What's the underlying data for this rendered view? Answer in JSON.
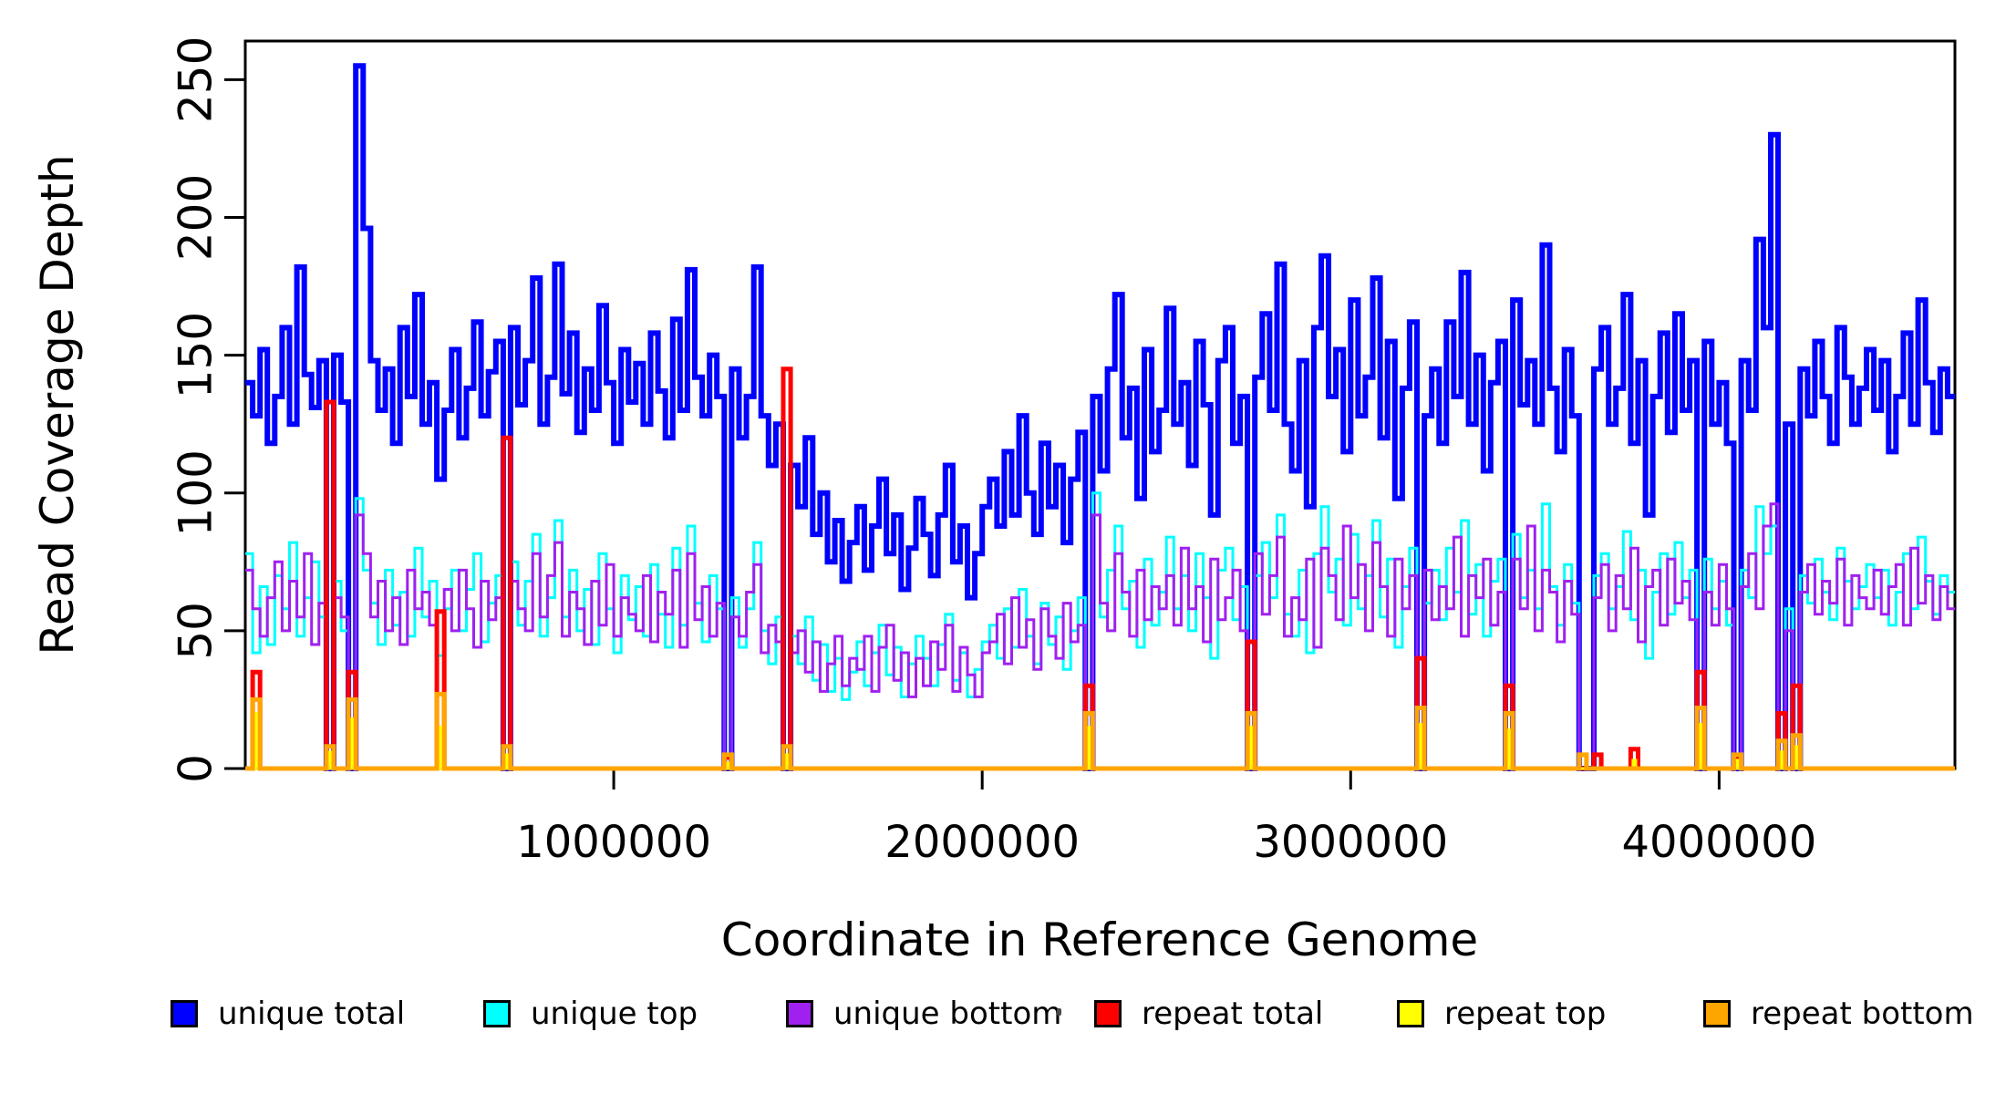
{
  "chart_data": {
    "type": "line",
    "subtype": "step",
    "title": "",
    "xlabel": "Coordinate in Reference Genome",
    "ylabel": "Read Coverage Depth",
    "xlim": [
      0,
      4640000
    ],
    "ylim": [
      0,
      264
    ],
    "grid": false,
    "legend_position": "bottom",
    "x_bin_size": 20000,
    "n_bins": 232,
    "x_ticks": [
      1000000,
      2000000,
      3000000,
      4000000
    ],
    "x_tick_labels": [
      "1000000",
      "2000000",
      "3000000",
      "4000000"
    ],
    "y_ticks": [
      0,
      50,
      100,
      150,
      200,
      250
    ],
    "y_tick_labels": [
      "0",
      "50",
      "100",
      "150",
      "200",
      "250"
    ],
    "series": [
      {
        "name": "unique total",
        "color": "#0000FF",
        "line_width": 6,
        "values": [
          140,
          128,
          152,
          118,
          135,
          160,
          125,
          182,
          143,
          131,
          148,
          0,
          150,
          133,
          0,
          255,
          196,
          148,
          130,
          145,
          118,
          160,
          135,
          172,
          125,
          140,
          105,
          130,
          152,
          120,
          138,
          162,
          128,
          144,
          155,
          0,
          160,
          132,
          148,
          178,
          125,
          142,
          183,
          136,
          158,
          122,
          145,
          130,
          168,
          140,
          118,
          152,
          133,
          147,
          125,
          158,
          137,
          120,
          163,
          130,
          181,
          142,
          128,
          150,
          135,
          0,
          145,
          120,
          135,
          182,
          128,
          110,
          125,
          0,
          110,
          95,
          120,
          85,
          100,
          75,
          90,
          68,
          82,
          95,
          72,
          88,
          105,
          78,
          92,
          65,
          80,
          98,
          85,
          70,
          92,
          110,
          75,
          88,
          62,
          78,
          95,
          105,
          88,
          115,
          92,
          128,
          100,
          85,
          118,
          95,
          110,
          82,
          105,
          122,
          0,
          135,
          108,
          145,
          172,
          120,
          138,
          98,
          152,
          115,
          130,
          167,
          125,
          140,
          110,
          155,
          132,
          92,
          148,
          160,
          118,
          135,
          0,
          142,
          165,
          130,
          183,
          125,
          108,
          148,
          95,
          160,
          186,
          135,
          152,
          115,
          170,
          128,
          142,
          178,
          120,
          155,
          98,
          138,
          162,
          0,
          128,
          145,
          118,
          162,
          135,
          180,
          125,
          150,
          108,
          140,
          155,
          0,
          170,
          132,
          148,
          125,
          190,
          138,
          115,
          152,
          128,
          0,
          0,
          145,
          160,
          125,
          138,
          172,
          118,
          148,
          92,
          135,
          158,
          122,
          165,
          130,
          148,
          0,
          155,
          125,
          140,
          118,
          0,
          148,
          130,
          192,
          160,
          230,
          0,
          125,
          0,
          145,
          128,
          155,
          135,
          118,
          160,
          142,
          125,
          138,
          152,
          130,
          148,
          115,
          135,
          158,
          125,
          170,
          140,
          122,
          145,
          135
        ]
      },
      {
        "name": "unique top",
        "color": "#00FFFF",
        "line_width": 3,
        "values": [
          78,
          42,
          66,
          45,
          70,
          58,
          82,
          48,
          62,
          75,
          55,
          0,
          68,
          50,
          0,
          98,
          72,
          60,
          45,
          72,
          52,
          64,
          48,
          80,
          55,
          68,
          41,
          58,
          72,
          50,
          65,
          78,
          46,
          60,
          70,
          0,
          75,
          52,
          68,
          85,
          48,
          62,
          90,
          55,
          72,
          50,
          65,
          45,
          78,
          58,
          42,
          70,
          54,
          66,
          48,
          74,
          56,
          44,
          80,
          52,
          88,
          60,
          46,
          70,
          58,
          0,
          62,
          44,
          58,
          82,
          50,
          38,
          55,
          0,
          48,
          38,
          55,
          32,
          45,
          28,
          40,
          25,
          35,
          46,
          30,
          42,
          52,
          34,
          44,
          26,
          38,
          48,
          40,
          30,
          45,
          56,
          32,
          42,
          26,
          36,
          46,
          52,
          40,
          58,
          44,
          65,
          48,
          38,
          60,
          45,
          55,
          36,
          50,
          62,
          0,
          100,
          55,
          72,
          88,
          58,
          68,
          44,
          76,
          52,
          64,
          84,
          58,
          70,
          50,
          78,
          62,
          40,
          72,
          80,
          54,
          66,
          0,
          70,
          82,
          62,
          92,
          56,
          48,
          72,
          42,
          78,
          95,
          64,
          76,
          52,
          85,
          58,
          70,
          90,
          55,
          76,
          44,
          66,
          80,
          0,
          60,
          72,
          54,
          80,
          64,
          90,
          56,
          74,
          48,
          68,
          76,
          0,
          85,
          62,
          72,
          58,
          96,
          66,
          52,
          74,
          60,
          0,
          0,
          70,
          78,
          58,
          66,
          86,
          54,
          72,
          40,
          64,
          78,
          56,
          82,
          62,
          72,
          0,
          76,
          58,
          68,
          52,
          0,
          72,
          62,
          95,
          78,
          88,
          0,
          58,
          0,
          70,
          60,
          76,
          64,
          54,
          80,
          68,
          58,
          66,
          74,
          62,
          72,
          52,
          64,
          78,
          58,
          84,
          68,
          56,
          70,
          64
        ]
      },
      {
        "name": "unique bottom",
        "color": "#A020F0",
        "line_width": 3,
        "values": [
          72,
          58,
          48,
          62,
          75,
          50,
          68,
          55,
          78,
          45,
          60,
          0,
          62,
          55,
          0,
          92,
          78,
          55,
          68,
          50,
          62,
          45,
          72,
          58,
          64,
          52,
          0,
          65,
          50,
          72,
          58,
          44,
          68,
          54,
          62,
          0,
          68,
          58,
          50,
          78,
          55,
          70,
          82,
          48,
          64,
          58,
          45,
          68,
          52,
          74,
          48,
          62,
          56,
          50,
          70,
          46,
          64,
          56,
          72,
          44,
          78,
          54,
          66,
          48,
          60,
          0,
          55,
          48,
          64,
          74,
          42,
          52,
          46,
          0,
          42,
          50,
          35,
          46,
          28,
          38,
          48,
          30,
          40,
          36,
          48,
          28,
          44,
          52,
          32,
          42,
          26,
          40,
          30,
          46,
          36,
          52,
          28,
          44,
          34,
          26,
          42,
          46,
          56,
          38,
          62,
          44,
          54,
          36,
          58,
          48,
          40,
          60,
          46,
          52,
          0,
          92,
          60,
          50,
          78,
          64,
          48,
          72,
          54,
          66,
          58,
          70,
          52,
          80,
          58,
          66,
          46,
          76,
          54,
          62,
          72,
          50,
          0,
          78,
          56,
          70,
          84,
          48,
          62,
          54,
          76,
          44,
          80,
          70,
          54,
          88,
          62,
          74,
          50,
          82,
          66,
          48,
          76,
          58,
          70,
          0,
          72,
          54,
          66,
          58,
          84,
          48,
          70,
          62,
          76,
          52,
          64,
          0,
          76,
          58,
          88,
          50,
          72,
          64,
          46,
          68,
          56,
          0,
          0,
          62,
          74,
          50,
          70,
          58,
          80,
          46,
          66,
          72,
          52,
          76,
          60,
          68,
          54,
          0,
          64,
          52,
          74,
          58,
          0,
          66,
          78,
          58,
          88,
          96,
          0,
          50,
          0,
          64,
          74,
          56,
          68,
          60,
          76,
          52,
          70,
          62,
          58,
          72,
          56,
          66,
          74,
          52,
          80,
          60,
          70,
          54,
          66,
          58
        ]
      },
      {
        "name": "repeat total",
        "color": "#FF0000",
        "line_width": 5,
        "spikes": {
          "1": 35,
          "11": 133,
          "14": 35,
          "26": 57,
          "35": 120,
          "65": 4,
          "73": 145,
          "114": 30,
          "136": 46,
          "159": 40,
          "171": 30,
          "183": 5,
          "188": 7,
          "197": 35,
          "202": 4,
          "208": 20,
          "210": 30
        }
      },
      {
        "name": "repeat top",
        "color": "#FFFF00",
        "line_width": 3,
        "spikes": {
          "1": 20,
          "11": 6,
          "14": 18,
          "26": 15,
          "35": 5,
          "65": 2,
          "73": 5,
          "114": 15,
          "136": 15,
          "159": 16,
          "171": 14,
          "188": 3,
          "197": 16,
          "202": 3,
          "208": 6,
          "210": 8
        }
      },
      {
        "name": "repeat bottom",
        "color": "#FFA500",
        "line_width": 5,
        "spikes": {
          "1": 25,
          "11": 8,
          "14": 25,
          "26": 27,
          "35": 8,
          "65": 5,
          "73": 8,
          "114": 20,
          "136": 20,
          "159": 22,
          "171": 20,
          "181": 5,
          "197": 22,
          "202": 5,
          "208": 10,
          "210": 12
        }
      }
    ]
  }
}
